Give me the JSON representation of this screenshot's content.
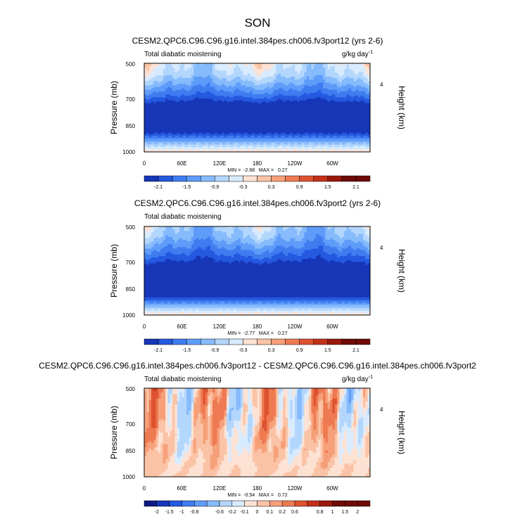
{
  "figure": {
    "title": "SON"
  },
  "colors": {
    "neg": [
      "#0d1a80",
      "#1736b8",
      "#2459e0",
      "#3e7cf0",
      "#5f9cfa",
      "#86bbfc",
      "#b3d6fd",
      "#d9ebfe"
    ],
    "pos": [
      "#fde2d4",
      "#fbc3a6",
      "#f6a07a",
      "#ee7a52",
      "#de5230",
      "#c23018",
      "#9a170c",
      "#6e0a05"
    ]
  },
  "chart_data": [
    {
      "type": "heatmap",
      "title": "CESM2.QPC6.C96.C96.g16.intel.384pes.ch006.fv3port12 (yrs 2-6)",
      "left_label": "Total diabatic moistening",
      "units": "g/kg day",
      "units_exp": "-1",
      "ylabel": "Pressure (mb)",
      "ylabel_right": "Height (km)",
      "right_ticks": [
        "4"
      ],
      "yticks": [
        "500",
        "700",
        "850",
        "1000"
      ],
      "xticks": [
        "0",
        "60E",
        "120E",
        "180",
        "120W",
        "60W"
      ],
      "stats": "MIN =  -2.68   MAX =   0.27",
      "colorbar_labels": [
        "-2.1",
        "-1.5",
        "-0.9",
        "-0.3",
        "0.3",
        "0.9",
        "1.5",
        "2.1"
      ],
      "levels": [
        -2.1,
        -1.8,
        -1.5,
        -1.2,
        -0.9,
        -0.6,
        -0.3,
        0,
        0.3,
        0.6,
        0.9,
        1.2,
        1.5,
        1.8,
        2.1
      ],
      "profile": [
        [
          500,
          -0.45
        ],
        [
          560,
          -0.7
        ],
        [
          620,
          -1.2
        ],
        [
          680,
          -1.75
        ],
        [
          740,
          -2.4
        ],
        [
          800,
          -2.6
        ],
        [
          860,
          -2.55
        ],
        [
          900,
          -2.05
        ],
        [
          930,
          -1.4
        ],
        [
          960,
          -0.8
        ],
        [
          985,
          -0.35
        ],
        [
          1000,
          -0.15
        ]
      ]
    },
    {
      "type": "heatmap",
      "title": "CESM2.QPC6.C96.C96.g16.intel.384pes.ch006.fv3port2 (yrs 2-6)",
      "left_label": "Total diabatic moistening",
      "units": "g/kg day",
      "units_exp": "-1",
      "ylabel": "Pressure (mb)",
      "ylabel_right": "Height (km)",
      "right_ticks": [
        "4"
      ],
      "yticks": [
        "500",
        "700",
        "850",
        "1000"
      ],
      "xticks": [
        "0",
        "60E",
        "120E",
        "180",
        "120W",
        "60W"
      ],
      "stats": "MIN =  -2.77   MAX =   0.27",
      "colorbar_labels": [
        "-2.1",
        "-1.5",
        "-0.9",
        "-0.3",
        "0.3",
        "0.9",
        "1.5",
        "2.1"
      ],
      "levels": [
        -2.1,
        -1.8,
        -1.5,
        -1.2,
        -0.9,
        -0.6,
        -0.3,
        0,
        0.3,
        0.6,
        0.9,
        1.2,
        1.5,
        1.8,
        2.1
      ],
      "profile": [
        [
          500,
          -0.8
        ],
        [
          560,
          -1.05
        ],
        [
          620,
          -1.5
        ],
        [
          680,
          -1.95
        ],
        [
          740,
          -2.5
        ],
        [
          800,
          -2.7
        ],
        [
          860,
          -2.65
        ],
        [
          900,
          -2.15
        ],
        [
          930,
          -1.5
        ],
        [
          960,
          -0.85
        ],
        [
          985,
          -0.35
        ],
        [
          1000,
          -0.15
        ]
      ]
    },
    {
      "type": "heatmap",
      "title": "CESM2.QPC6.C96.C96.g16.intel.384pes.ch006.fv3port12 - CESM2.QPC6.C96.C96.g16.intel.384pes.ch006.fv3port2",
      "left_label": "Total diabatic moistening",
      "units": "g/kg day",
      "units_exp": "-1",
      "ylabel": "Pressure (mb)",
      "ylabel_right": "Height (km)",
      "right_ticks": [
        "4"
      ],
      "yticks": [
        "500",
        "700",
        "850",
        "1000"
      ],
      "xticks": [
        "0",
        "60E",
        "120E",
        "180",
        "120W",
        "60W"
      ],
      "stats": "MIN =  -0.54   MAX =   0.72",
      "colorbar_labels": [
        "-2",
        "-1.5",
        "-1",
        "-0.8",
        "-0.6",
        "-0.2",
        "-0.1",
        "0",
        "0.1",
        "0.2",
        "0.6",
        "0.8",
        "1",
        "1.5",
        "2"
      ],
      "levels": [
        -2,
        -1.5,
        -1,
        -0.8,
        -0.6,
        -0.4,
        -0.2,
        -0.1,
        0,
        0.1,
        0.2,
        0.4,
        0.6,
        0.8,
        1,
        1.5,
        2
      ],
      "diff": true,
      "profile": [
        [
          500,
          0.0
        ],
        [
          1000,
          0.0
        ]
      ]
    }
  ]
}
